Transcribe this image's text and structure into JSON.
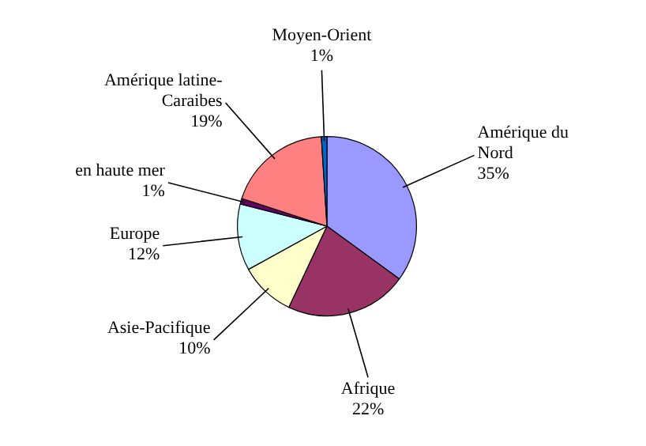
{
  "chart_data": {
    "type": "pie",
    "categories": [
      "Amérique du Nord",
      "Afrique",
      "Asie-Pacifique",
      "Europe",
      "en haute mer",
      "Amérique latine-Caraibes",
      "Moyen-Orient"
    ],
    "values": [
      35,
      22,
      10,
      12,
      1,
      19,
      1
    ],
    "colors": [
      "#9999ff",
      "#993366",
      "#ffffcc",
      "#ccffff",
      "#660066",
      "#ff8080",
      "#0066cc"
    ],
    "value_labels": [
      "35%",
      "22%",
      "10%",
      "12%",
      "1%",
      "19%",
      "1%"
    ],
    "legend": false
  }
}
